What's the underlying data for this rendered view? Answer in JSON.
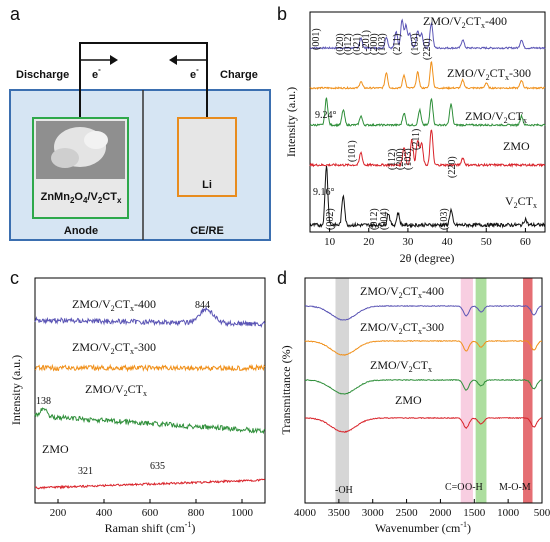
{
  "panel_letters": {
    "a": "a",
    "b": "b",
    "c": "c",
    "d": "d"
  },
  "schematic": {
    "discharge": "Discharge",
    "charge": "Charge",
    "electron_left": "e",
    "electron_right": "e",
    "electron_sup": "-",
    "anode_material": "ZnMn2O4/V2CTx",
    "anode_label": "Anode",
    "li_label": "Li",
    "cere_label": "CE/RE",
    "colors": {
      "box_fill": "#d6e5f3",
      "box_border": "#3b6fb0",
      "anode_border": "#2ea84a",
      "li_border": "#e88c1e"
    }
  },
  "chart_data": [
    {
      "panel": "b",
      "type": "line",
      "xlabel": "2θ (degree)",
      "ylabel": "Intensity (a.u.)",
      "xlim": [
        5,
        65
      ],
      "xticks": [
        "10",
        "20",
        "30",
        "40",
        "50",
        "60"
      ],
      "series": [
        {
          "name": "ZMO/V2CTx-400",
          "color": "#5b55b5",
          "peaks": [
            [
              18,
              0.35
            ],
            [
              24.5,
              0.4
            ],
            [
              27,
              0.6
            ],
            [
              28.5,
              1.0
            ],
            [
              29.5,
              0.8
            ],
            [
              30.5,
              0.5
            ],
            [
              32.5,
              0.6
            ],
            [
              33.5,
              0.5
            ],
            [
              36,
              0.9
            ],
            [
              44,
              0.3
            ],
            [
              59,
              0.3
            ]
          ]
        },
        {
          "name": "ZMO/V2CTx-300",
          "color": "#f0901a",
          "peaks": [
            [
              18,
              0.25
            ],
            [
              24.5,
              0.6
            ],
            [
              29,
              0.5
            ],
            [
              32.5,
              0.6
            ],
            [
              36,
              1.0
            ],
            [
              44,
              0.3
            ],
            [
              50,
              0.2
            ],
            [
              59,
              0.3
            ]
          ]
        },
        {
          "name": "ZMO/V2CTx",
          "color": "#2f8f3a",
          "peaks": [
            [
              9.2,
              0.9
            ],
            [
              13.5,
              0.5
            ],
            [
              18,
              0.3
            ],
            [
              29,
              0.4
            ],
            [
              33,
              0.5
            ],
            [
              36,
              0.9
            ],
            [
              41,
              0.7
            ],
            [
              59,
              0.3
            ]
          ]
        },
        {
          "name": "ZMO",
          "color": "#d9232a",
          "peaks": [
            [
              18,
              0.35
            ],
            [
              29,
              0.5
            ],
            [
              31,
              0.7
            ],
            [
              32.5,
              0.7
            ],
            [
              33.5,
              0.6
            ],
            [
              36,
              1.0
            ],
            [
              44,
              0.2
            ]
          ]
        },
        {
          "name": "V2CTx",
          "color": "#111111",
          "peaks": [
            [
              9.2,
              1.0
            ],
            [
              13.5,
              0.5
            ],
            [
              25,
              0.2
            ],
            [
              27.5,
              0.2
            ],
            [
              41,
              0.25
            ],
            [
              60,
              0.1
            ]
          ]
        }
      ],
      "annotations_top": [
        "(001)",
        "(020)",
        "(012)",
        "(021)",
        "(-201)",
        "(200)",
        "(103)",
        "(211)",
        "(103)",
        "(220)"
      ],
      "annotation_924": "9.24°",
      "annotations_zmo": [
        "(101)",
        "(112)",
        "(200)",
        "(103)",
        "(211)",
        "(220)"
      ],
      "annotation_916": "9.16°",
      "annotations_v2ctx": [
        "(002)",
        "(012)",
        "(004)",
        "(103)"
      ]
    },
    {
      "panel": "c",
      "type": "line",
      "xlabel": "Raman shift (cm-1)",
      "ylabel": "Intensity (a.u.)",
      "xlim": [
        100,
        1100
      ],
      "xticks": [
        "200",
        "400",
        "600",
        "800",
        "1000"
      ],
      "series": [
        {
          "name": "ZMO/V2CTx-400",
          "color": "#5b55b5"
        },
        {
          "name": "ZMO/V2CTx-300",
          "color": "#f0901a"
        },
        {
          "name": "ZMO/V2CTx",
          "color": "#2f8f3a"
        },
        {
          "name": "ZMO",
          "color": "#d9232a"
        }
      ],
      "peak_labels": [
        "844",
        "138",
        "321",
        "635"
      ]
    },
    {
      "panel": "d",
      "type": "line",
      "xlabel": "Wavenumber (cm-1)",
      "ylabel": "Transmittance (%)",
      "xlim": [
        4000,
        500
      ],
      "xticks": [
        "4000",
        "3500",
        "3000",
        "2500",
        "2000",
        "1500",
        "1000",
        "500"
      ],
      "series": [
        {
          "name": "ZMO/V2CTx-400",
          "color": "#5b55b5"
        },
        {
          "name": "ZMO/V2CTx-300",
          "color": "#f0901a"
        },
        {
          "name": "ZMO/V2CTx",
          "color": "#2f8f3a"
        },
        {
          "name": "ZMO",
          "color": "#d9232a"
        }
      ],
      "bands": [
        {
          "label": "-OH",
          "from": 3550,
          "to": 3350,
          "color": "#cfcfcf"
        },
        {
          "label": "C=O",
          "from": 1700,
          "to": 1520,
          "color": "#f7c6dc"
        },
        {
          "label": "O-H",
          "from": 1480,
          "to": 1320,
          "color": "#9fd88e"
        },
        {
          "label": "M-O-M",
          "from": 780,
          "to": 640,
          "color": "#e0555a"
        }
      ]
    }
  ]
}
